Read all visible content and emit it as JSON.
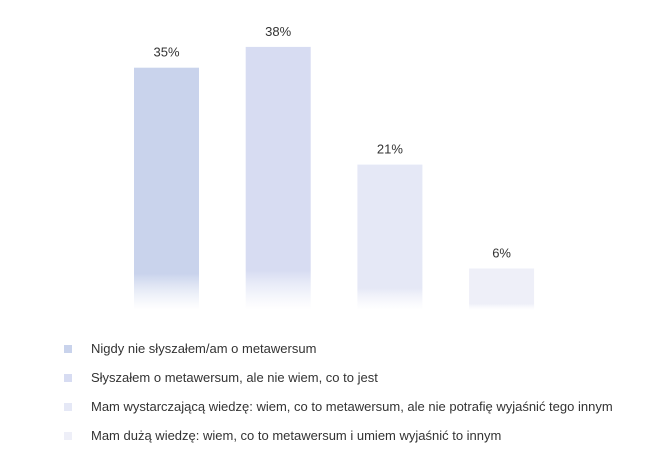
{
  "chart_data": {
    "type": "bar",
    "categories": [
      "Nigdy nie słyszałem/am o metawersum",
      "Słyszałem o metawersum, ale nie wiem, co to jest",
      "Mam wystarczającą wiedzę: wiem, co to metawersum, ale nie potrafię wyjaśnić tego innym",
      "Mam dużą wiedzę: wiem, co to metawersum i umiem wyjaśnić to innym"
    ],
    "values": [
      35,
      38,
      21,
      6
    ],
    "value_labels": [
      "35%",
      "38%",
      "21%",
      "6%"
    ],
    "unit": "%",
    "ylim": [
      0,
      40
    ],
    "grid": false,
    "legend_position": "bottom",
    "colors": [
      "#c9d3ec",
      "#d7dcf2",
      "#e5e8f6",
      "#eeeff8"
    ]
  }
}
